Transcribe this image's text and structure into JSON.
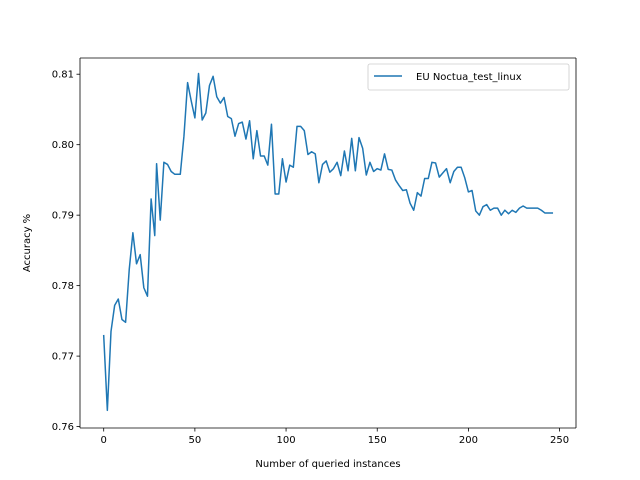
{
  "chart_data": {
    "type": "line",
    "title": "",
    "xlabel": "Number of queried instances",
    "ylabel": "Accuracy %",
    "xlim": [
      -13,
      259
    ],
    "ylim": [
      0.7598,
      0.8123
    ],
    "xticks": [
      0,
      50,
      100,
      150,
      200,
      250
    ],
    "yticks": [
      0.76,
      0.77,
      0.78,
      0.79,
      0.8,
      0.81
    ],
    "xtick_labels": [
      "0",
      "50",
      "100",
      "150",
      "200",
      "250"
    ],
    "ytick_labels": [
      "0.76",
      "0.77",
      "0.78",
      "0.79",
      "0.80",
      "0.81"
    ],
    "grid": false,
    "legend_position": "upper-right",
    "series": [
      {
        "name": "EU Noctua_test_linux",
        "color": "#1f77b4",
        "x": [
          0,
          2,
          4,
          6,
          8,
          10,
          12,
          14,
          16,
          18,
          20,
          22,
          24,
          26,
          28,
          29,
          31,
          33,
          35,
          37,
          39,
          42,
          44,
          46,
          48,
          50,
          52,
          54,
          56,
          58,
          60,
          62,
          64,
          66,
          68,
          70,
          72,
          74,
          76,
          78,
          80,
          82,
          84,
          86,
          88,
          90,
          92,
          94,
          96,
          98,
          100,
          102,
          104,
          106,
          108,
          110,
          112,
          114,
          116,
          118,
          120,
          122,
          124,
          126,
          128,
          130,
          132,
          134,
          136,
          138,
          140,
          142,
          144,
          146,
          148,
          150,
          152,
          154,
          156,
          158,
          160,
          162,
          164,
          166,
          168,
          170,
          172,
          174,
          176,
          178,
          180,
          182,
          184,
          186,
          188,
          190,
          192,
          194,
          196,
          198,
          200,
          202,
          204,
          206,
          208,
          210,
          212,
          214,
          216,
          218,
          220,
          222,
          224,
          226,
          228,
          230,
          232,
          234,
          236,
          238,
          240,
          242,
          244,
          246
        ],
        "y": [
          0.7729,
          0.7623,
          0.7735,
          0.7772,
          0.7781,
          0.7752,
          0.7748,
          0.7823,
          0.7875,
          0.7831,
          0.7844,
          0.7797,
          0.7785,
          0.7923,
          0.7871,
          0.7973,
          0.7893,
          0.7975,
          0.7972,
          0.7962,
          0.7958,
          0.7958,
          0.8012,
          0.8088,
          0.8062,
          0.8038,
          0.8101,
          0.8035,
          0.8045,
          0.8084,
          0.8097,
          0.8068,
          0.8059,
          0.8067,
          0.804,
          0.8037,
          0.8012,
          0.803,
          0.8032,
          0.8008,
          0.8034,
          0.798,
          0.802,
          0.7984,
          0.7984,
          0.7971,
          0.8029,
          0.793,
          0.793,
          0.798,
          0.7947,
          0.7971,
          0.7968,
          0.8026,
          0.8026,
          0.802,
          0.7986,
          0.799,
          0.7987,
          0.7946,
          0.7972,
          0.7977,
          0.7961,
          0.7966,
          0.7975,
          0.7956,
          0.7991,
          0.7963,
          0.8009,
          0.7963,
          0.801,
          0.7995,
          0.7957,
          0.7975,
          0.7962,
          0.7966,
          0.7964,
          0.7987,
          0.7965,
          0.7964,
          0.795,
          0.7942,
          0.7935,
          0.7936,
          0.7917,
          0.7907,
          0.7932,
          0.7927,
          0.7952,
          0.7952,
          0.7975,
          0.7974,
          0.7954,
          0.796,
          0.7966,
          0.7946,
          0.7962,
          0.7968,
          0.7968,
          0.7953,
          0.7933,
          0.7935,
          0.7906,
          0.79,
          0.7912,
          0.7915,
          0.7907,
          0.791,
          0.791,
          0.79,
          0.7907,
          0.7902,
          0.7907,
          0.7904,
          0.791,
          0.7913,
          0.791,
          0.791,
          0.791,
          0.791,
          0.7907,
          0.7903,
          0.7903,
          0.7903
        ]
      }
    ]
  }
}
